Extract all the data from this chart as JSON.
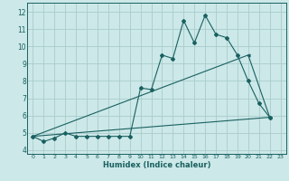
{
  "xlabel": "Humidex (Indice chaleur)",
  "xlim": [
    -0.5,
    23.5
  ],
  "ylim": [
    3.8,
    12.5
  ],
  "yticks": [
    4,
    5,
    6,
    7,
    8,
    9,
    10,
    11,
    12
  ],
  "xticks": [
    0,
    1,
    2,
    3,
    4,
    5,
    6,
    7,
    8,
    9,
    10,
    11,
    12,
    13,
    14,
    15,
    16,
    17,
    18,
    19,
    20,
    21,
    22,
    23
  ],
  "bg_color": "#cce8e8",
  "grid_color": "#aacccc",
  "line_color": "#1a6060",
  "line1_x": [
    0,
    1,
    2,
    3,
    4,
    5,
    6,
    7,
    8,
    9,
    10,
    11,
    12,
    13,
    14,
    15,
    16,
    17,
    18,
    19,
    20,
    21,
    22
  ],
  "line1_y": [
    4.8,
    4.5,
    4.7,
    5.0,
    4.8,
    4.8,
    4.8,
    4.8,
    4.8,
    4.8,
    7.6,
    7.5,
    9.5,
    9.3,
    11.5,
    10.2,
    11.8,
    10.7,
    10.5,
    9.5,
    8.0,
    6.7,
    5.9
  ],
  "line2_x": [
    0,
    20,
    22
  ],
  "line2_y": [
    4.8,
    9.5,
    5.9
  ],
  "line3_x": [
    0,
    22
  ],
  "line3_y": [
    4.8,
    5.9
  ]
}
